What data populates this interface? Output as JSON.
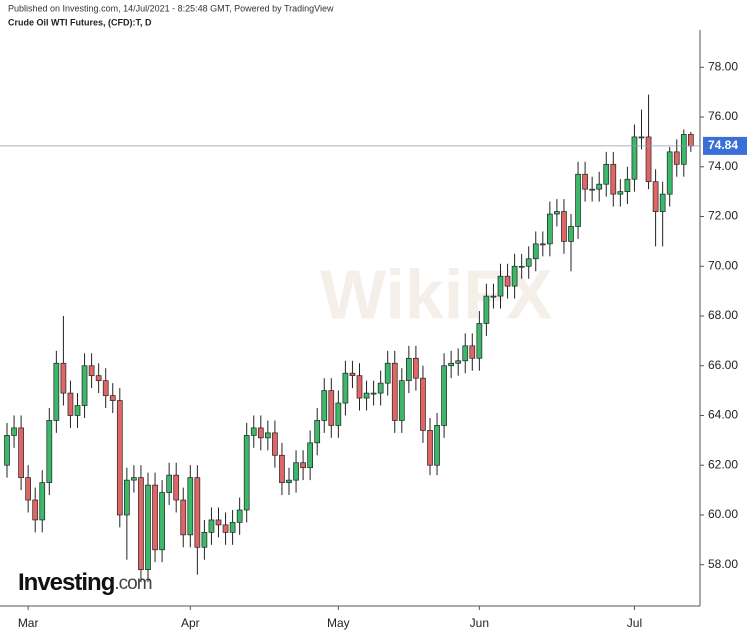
{
  "chart_data": {
    "type": "candlestick",
    "header": "Published on Investing.com, 14/Jul/2021 - 8:25:48 GMT, Powered by TradingView",
    "title": "Crude Oil WTI Futures, (CFD):T, D",
    "logo": [
      "Investing",
      ".com"
    ],
    "watermark": "WikiFX",
    "last_price": 74.84,
    "up_color": "#3cb86a",
    "down_color": "#e06666",
    "categories": [
      null,
      null,
      null,
      "Mar",
      null,
      null,
      null,
      null,
      null,
      null,
      null,
      null,
      null,
      null,
      null,
      null,
      null,
      null,
      null,
      null,
      null,
      null,
      null,
      null,
      null,
      null,
      "Apr",
      null,
      null,
      null,
      null,
      null,
      null,
      null,
      null,
      null,
      null,
      null,
      null,
      null,
      null,
      null,
      null,
      null,
      null,
      null,
      null,
      "May",
      null,
      null,
      null,
      null,
      null,
      null,
      null,
      null,
      null,
      null,
      null,
      null,
      null,
      null,
      null,
      null,
      null,
      null,
      null,
      "Jun",
      null,
      null,
      null,
      null,
      null,
      null,
      null,
      null,
      null,
      null,
      null,
      null,
      null,
      null,
      null,
      null,
      null,
      null,
      null,
      null,
      null,
      "Jul",
      null,
      null,
      null,
      null,
      null,
      null,
      null,
      null
    ],
    "open": [
      62.0,
      63.2,
      63.5,
      61.5,
      60.6,
      59.8,
      61.3,
      63.8,
      66.1,
      64.9,
      64.0,
      64.4,
      66.0,
      65.6,
      65.4,
      64.8,
      64.6,
      60.0,
      61.4,
      61.5,
      57.8,
      61.2,
      58.6,
      60.9,
      61.6,
      60.6,
      59.2,
      61.5,
      58.7,
      59.3,
      59.8,
      59.6,
      59.3,
      59.7,
      60.2,
      63.2,
      63.5,
      63.1,
      63.3,
      62.4,
      61.3,
      61.4,
      62.1,
      61.9,
      62.9,
      63.8,
      65.0,
      63.6,
      64.5,
      65.7,
      65.6,
      64.7,
      64.9,
      64.9,
      65.3,
      66.1,
      63.8,
      65.4,
      66.3,
      65.5,
      63.4,
      62.0,
      63.6,
      66.0,
      66.1,
      66.2,
      66.8,
      66.3,
      67.7,
      68.8,
      68.8,
      69.6,
      69.2,
      70.0,
      70.0,
      70.3,
      70.9,
      70.9,
      72.1,
      72.2,
      71.0,
      71.6,
      73.7,
      73.1,
      73.1,
      73.3,
      74.1,
      72.9,
      73.0,
      73.5,
      75.2,
      75.2,
      73.4,
      72.2,
      72.9,
      74.6,
      74.1,
      75.3
    ],
    "high": [
      63.7,
      64.0,
      64.0,
      62.0,
      61.1,
      61.8,
      64.3,
      66.6,
      68.0,
      65.4,
      64.9,
      66.5,
      66.5,
      66.1,
      65.9,
      65.3,
      65.1,
      61.9,
      62.0,
      62.0,
      61.7,
      61.7,
      61.4,
      62.1,
      62.1,
      61.1,
      62.0,
      62.0,
      59.8,
      60.3,
      60.3,
      60.1,
      60.2,
      60.7,
      63.7,
      64.0,
      64.0,
      63.8,
      63.8,
      62.9,
      61.9,
      62.6,
      62.6,
      63.4,
      64.3,
      65.5,
      65.5,
      65.0,
      66.2,
      66.2,
      66.1,
      65.4,
      65.4,
      65.8,
      66.6,
      66.6,
      65.9,
      66.8,
      66.8,
      66.0,
      63.9,
      64.1,
      66.5,
      66.6,
      66.7,
      67.3,
      67.3,
      68.2,
      69.3,
      69.3,
      70.1,
      70.1,
      70.5,
      70.5,
      70.8,
      71.4,
      71.4,
      72.6,
      72.7,
      72.7,
      72.1,
      74.2,
      74.2,
      73.6,
      73.8,
      74.6,
      74.6,
      73.5,
      74.0,
      75.7,
      76.3,
      76.9,
      73.9,
      73.4,
      74.8,
      75.1,
      75.5,
      75.4
    ],
    "low": [
      61.5,
      62.7,
      61.0,
      60.1,
      59.3,
      59.3,
      60.8,
      63.3,
      64.4,
      63.5,
      63.5,
      63.9,
      65.1,
      64.9,
      64.3,
      64.1,
      59.5,
      58.2,
      60.9,
      57.3,
      57.3,
      58.1,
      58.1,
      60.4,
      60.1,
      58.7,
      58.7,
      57.6,
      58.2,
      58.8,
      59.1,
      58.8,
      58.8,
      59.2,
      59.7,
      62.7,
      62.6,
      62.6,
      61.9,
      60.8,
      60.8,
      60.9,
      61.4,
      61.4,
      62.4,
      63.3,
      63.1,
      63.1,
      64.0,
      65.1,
      64.2,
      64.2,
      64.4,
      64.4,
      64.8,
      63.3,
      63.3,
      64.9,
      65.0,
      62.9,
      61.6,
      61.6,
      63.1,
      65.5,
      65.6,
      65.7,
      65.8,
      65.8,
      67.2,
      68.3,
      68.3,
      68.7,
      68.7,
      69.5,
      69.5,
      69.8,
      70.4,
      70.4,
      71.6,
      70.5,
      69.8,
      71.1,
      72.6,
      72.6,
      72.6,
      72.8,
      72.4,
      72.4,
      72.5,
      73.0,
      74.7,
      73.1,
      70.8,
      70.8,
      72.4,
      73.6,
      73.6,
      74.6
    ],
    "close": [
      63.2,
      63.5,
      61.5,
      60.6,
      59.8,
      61.3,
      63.8,
      66.1,
      64.9,
      64.0,
      64.4,
      66.0,
      65.6,
      65.4,
      64.8,
      64.6,
      60.0,
      61.4,
      61.5,
      57.8,
      61.2,
      58.6,
      60.9,
      61.6,
      60.6,
      59.2,
      61.5,
      58.7,
      59.3,
      59.8,
      59.6,
      59.3,
      59.7,
      60.2,
      63.2,
      63.5,
      63.1,
      63.3,
      62.4,
      61.3,
      61.4,
      62.1,
      61.9,
      62.9,
      63.8,
      65.0,
      63.6,
      64.5,
      65.7,
      65.6,
      64.7,
      64.9,
      64.9,
      65.3,
      66.1,
      63.8,
      65.4,
      66.3,
      65.5,
      63.4,
      62.0,
      63.6,
      66.0,
      66.1,
      66.2,
      66.8,
      66.3,
      67.7,
      68.8,
      68.8,
      69.6,
      69.2,
      70.0,
      70.0,
      70.3,
      70.9,
      70.9,
      72.1,
      72.2,
      71.0,
      71.6,
      73.7,
      73.1,
      73.1,
      73.3,
      74.1,
      72.9,
      73.0,
      73.5,
      75.2,
      75.2,
      73.4,
      72.2,
      72.9,
      74.6,
      74.1,
      75.3,
      74.84
    ],
    "ylim": [
      56.5,
      79.5
    ],
    "yticks": [
      {
        "value": 58,
        "label": "58.00"
      },
      {
        "value": 60,
        "label": "60.00"
      },
      {
        "value": 62,
        "label": "62.00"
      },
      {
        "value": 64,
        "label": "64.00"
      },
      {
        "value": 66,
        "label": "66.00"
      },
      {
        "value": 68,
        "label": "68.00"
      },
      {
        "value": 70,
        "label": "70.00"
      },
      {
        "value": 72,
        "label": "72.00"
      },
      {
        "value": 74,
        "label": "74.00"
      },
      {
        "value": 76,
        "label": "76.00"
      },
      {
        "value": 78,
        "label": "78.00"
      }
    ]
  }
}
